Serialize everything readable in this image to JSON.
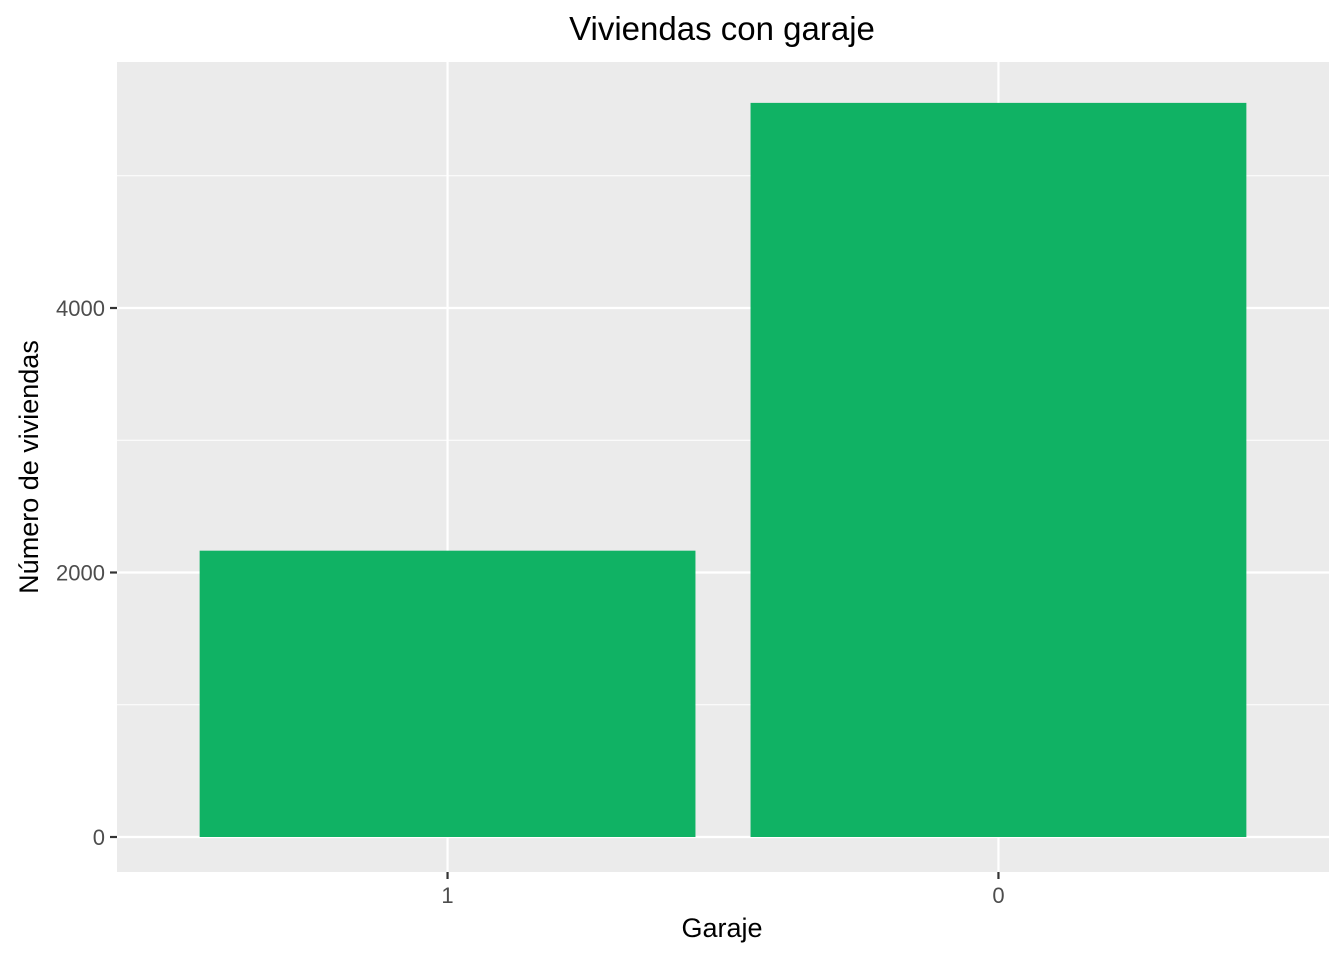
{
  "chart_data": {
    "type": "bar",
    "title": "Viviendas con garaje",
    "xlabel": "Garaje",
    "ylabel": "Número de viviendas",
    "categories": [
      "1",
      "0"
    ],
    "values": [
      2165,
      5551
    ],
    "ylim": [
      0,
      5830
    ],
    "yticks": [
      0,
      2000,
      4000
    ],
    "grid": true,
    "colors": {
      "bar": "#10b264",
      "panel": "#ebebeb",
      "grid": "#ffffff"
    }
  }
}
